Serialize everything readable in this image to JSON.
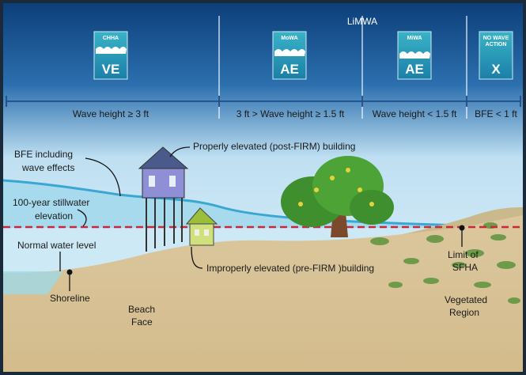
{
  "header": {
    "label": "LiMWA"
  },
  "zones": [
    {
      "icon_label": [
        "CHHA"
      ],
      "badge": "VE",
      "wave_height": "Wave height ≥ 3 ft"
    },
    {
      "icon_label": [
        "MoWA"
      ],
      "badge": "AE",
      "wave_height": "3 ft > Wave height ≥ 1.5 ft"
    },
    {
      "icon_label": [
        "MiWA"
      ],
      "badge": "AE",
      "wave_height": "Wave height < 1.5 ft"
    },
    {
      "icon_label": [
        "NO WAVE",
        "ACTION"
      ],
      "badge": "X",
      "wave_height": "BFE < 1 ft"
    }
  ],
  "annotations": {
    "bfe": [
      "BFE including",
      "wave effects"
    ],
    "stillwater": [
      "100-year stillwater",
      "elevation"
    ],
    "normal_water": [
      "Normal water level"
    ],
    "shoreline": [
      "Shoreline"
    ],
    "beach_face": [
      "Beach",
      "Face"
    ],
    "proper_building": [
      "Properly elevated (post-FIRM) building"
    ],
    "improper_building": [
      "Improperly elevated (pre-FIRM )building"
    ],
    "sfha": [
      "Limit of",
      "SFHA"
    ],
    "vegetated": [
      "Vegetated",
      "Region"
    ]
  }
}
